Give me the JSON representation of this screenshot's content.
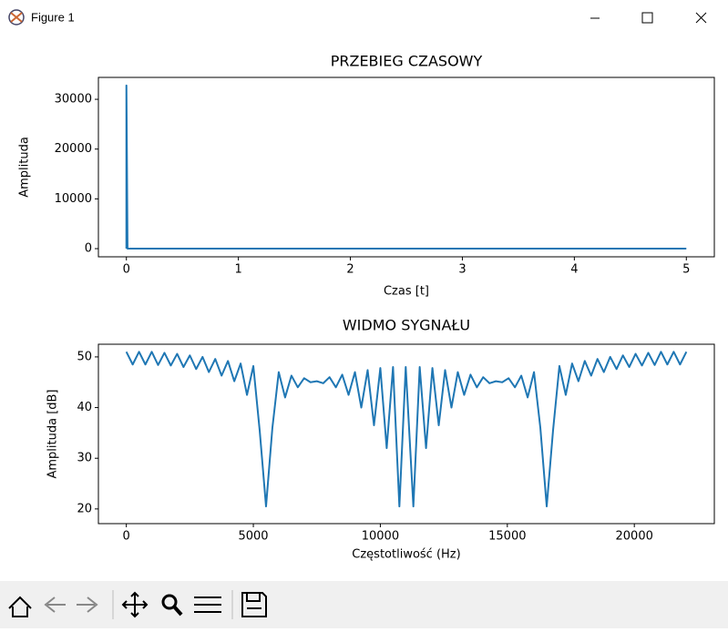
{
  "window": {
    "title": "Figure 1"
  },
  "chart_data": [
    {
      "type": "line",
      "title": "PRZEBIEG CZASOWY",
      "xlabel": "Czas [t]",
      "ylabel": "Amplituda",
      "color": "#1f77b4",
      "x": [
        0,
        0,
        0.01,
        5
      ],
      "values": [
        0,
        32767,
        0,
        0
      ],
      "xlim": [
        -0.25,
        5.25
      ],
      "ylim": [
        -1640,
        34400
      ],
      "xticks": [
        0,
        1,
        2,
        3,
        4,
        5
      ],
      "yticks": [
        0,
        10000,
        20000,
        30000
      ]
    },
    {
      "type": "line",
      "title": "WIDMO SYGNAŁU",
      "xlabel": "Częstotliwość (Hz)",
      "ylabel": "Amplituda [dB]",
      "color": "#1f77b4",
      "x": [
        0,
        250,
        500,
        750,
        1000,
        1250,
        1500,
        1750,
        2000,
        2250,
        2500,
        2750,
        3000,
        3250,
        3500,
        3750,
        4000,
        4250,
        4500,
        4750,
        5000,
        5250,
        5500,
        5750,
        6000,
        6250,
        6500,
        6750,
        7000,
        7250,
        7500,
        7750,
        8000,
        8250,
        8500,
        8750,
        9000,
        9250,
        9500,
        9750,
        10000,
        10250,
        10500,
        10750,
        11000,
        11300,
        11550,
        11800,
        12050,
        12300,
        12550,
        12800,
        13050,
        13300,
        13550,
        13800,
        14050,
        14300,
        14550,
        14800,
        15050,
        15300,
        15550,
        15800,
        16050,
        16300,
        16550,
        16800,
        17050,
        17300,
        17550,
        17800,
        18050,
        18300,
        18550,
        18800,
        19050,
        19300,
        19550,
        19800,
        20050,
        20300,
        20550,
        20800,
        21050,
        21300,
        21550,
        21800,
        22050
      ],
      "values": [
        51,
        48.5,
        51,
        48.5,
        51,
        48.4,
        50.8,
        48.3,
        50.6,
        48,
        50.3,
        47.6,
        50,
        47,
        49.6,
        46.3,
        49.2,
        45.2,
        48.7,
        42.5,
        48.2,
        35.5,
        20.5,
        36,
        47,
        42,
        46.3,
        44,
        45.8,
        45,
        45.2,
        44.8,
        46,
        44,
        46.5,
        42.5,
        47,
        40,
        47.4,
        36.5,
        47.8,
        32,
        48,
        20.5,
        48,
        20.5,
        48,
        32,
        47.8,
        36.5,
        47.4,
        40,
        47,
        42.5,
        46.5,
        44,
        46,
        44.8,
        45.2,
        45,
        45.8,
        44,
        46.3,
        42,
        47,
        36,
        20.5,
        35.5,
        48.2,
        42.5,
        48.7,
        45.2,
        49.2,
        46.3,
        49.6,
        47,
        50,
        47.6,
        50.3,
        48,
        50.6,
        48.3,
        50.8,
        48.4,
        51,
        48.5,
        51,
        48.5,
        51
      ],
      "xlim": [
        -1100,
        23150
      ],
      "ylim": [
        17.1,
        52.5
      ],
      "xticks": [
        0,
        5000,
        10000,
        15000,
        20000
      ],
      "yticks": [
        20,
        30,
        40,
        50
      ]
    }
  ]
}
